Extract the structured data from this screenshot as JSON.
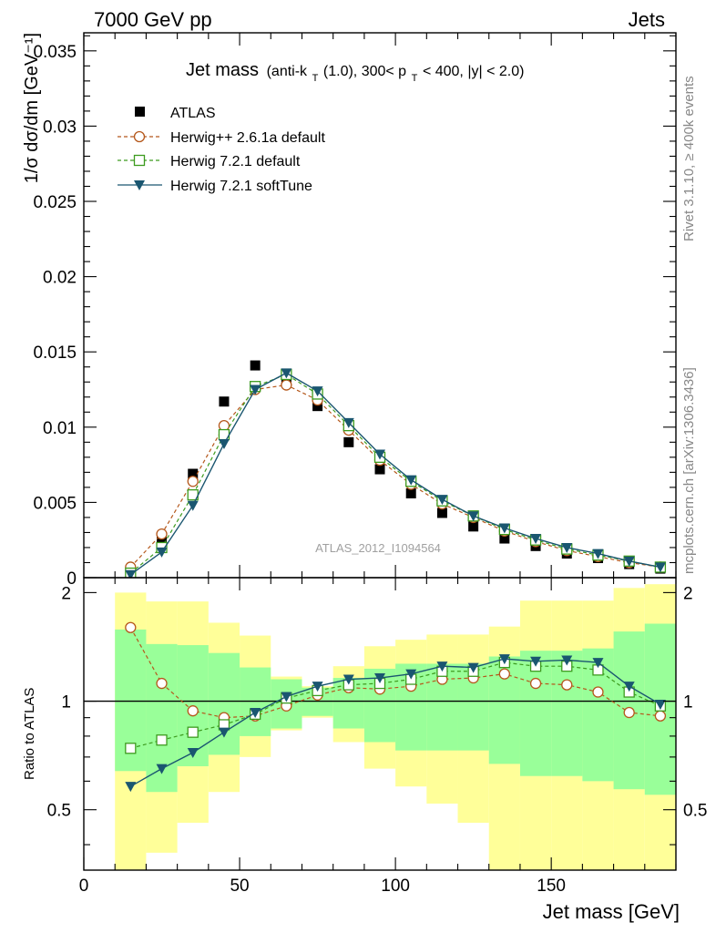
{
  "header": {
    "left": "7000 GeV pp",
    "right": "Jets"
  },
  "title": {
    "main": "Jet mass",
    "sub_pre": "(anti-k",
    "sub_T1": "T",
    "sub_mid": "(1.0), 300< p",
    "sub_T2": "T",
    "sub_post": " < 400, |y| < 2.0)"
  },
  "side_labels": {
    "rivet": "Rivet 3.1.10, ≥ 400k events",
    "mcplots": "mcplots.cern.ch [arXiv:1306.3436]"
  },
  "watermark": "ATLAS_2012_I1094564",
  "legend": {
    "atlas": "ATLAS",
    "h261": "Herwig++ 2.6.1a default",
    "h721": "Herwig 7.2.1 default",
    "h721soft": "Herwig 7.2.1 softTune"
  },
  "colors": {
    "atlas": "#000000",
    "h261": "#b5581c",
    "h721": "#3c9b1e",
    "h721soft": "#1a5670",
    "band_inner": "#99ff99",
    "band_outer": "#ffff99"
  },
  "chart_data": [
    {
      "type": "scatter",
      "title": "Jet mass (anti-kT(1.0), 300< pT < 400, |y| < 2.0)",
      "ylabel": "1/σ dσ/dm [GeV⁻¹]",
      "xlim": [
        0,
        190
      ],
      "ylim": [
        0,
        0.0362
      ],
      "yticks": [
        0,
        0.005,
        0.01,
        0.015,
        0.02,
        0.025,
        0.03,
        0.035
      ],
      "ytick_labels": [
        "0",
        "0.005",
        "0.01",
        "0.015",
        "0.02",
        "0.025",
        "0.03",
        "0.035"
      ],
      "x": [
        15,
        25,
        35,
        45,
        55,
        65,
        75,
        85,
        95,
        105,
        115,
        125,
        135,
        145,
        155,
        165,
        175,
        185
      ],
      "series": [
        {
          "name": "ATLAS",
          "style": "square",
          "values": [
            0.0004,
            0.0026,
            0.0069,
            0.0117,
            0.0141,
            0.0133,
            0.0114,
            0.009,
            0.0072,
            0.0056,
            0.0043,
            0.0034,
            0.0026,
            0.0021,
            0.0016,
            0.0013,
            0.0009,
            0.0006
          ]
        },
        {
          "name": "Herwig++ 2.6.1a default",
          "style": "circle-dashed",
          "values": [
            0.0007,
            0.0029,
            0.0064,
            0.0101,
            0.0125,
            0.0128,
            0.0118,
            0.0098,
            0.0078,
            0.0062,
            0.0049,
            0.004,
            0.0031,
            0.0024,
            0.0018,
            0.0014,
            0.001,
            0.0007
          ]
        },
        {
          "name": "Herwig 7.2.1 default",
          "style": "square-dashed",
          "values": [
            0.0003,
            0.002,
            0.0055,
            0.0095,
            0.0127,
            0.0135,
            0.0122,
            0.0101,
            0.008,
            0.0064,
            0.0051,
            0.0041,
            0.0032,
            0.0025,
            0.0019,
            0.0015,
            0.0011,
            0.0007
          ]
        },
        {
          "name": "Herwig 7.2.1 softTune",
          "style": "triangle-solid",
          "values": [
            0.0002,
            0.0017,
            0.0048,
            0.0089,
            0.0125,
            0.0136,
            0.0124,
            0.0103,
            0.0082,
            0.0065,
            0.0052,
            0.0041,
            0.0033,
            0.0026,
            0.002,
            0.0016,
            0.0011,
            0.0007
          ]
        }
      ]
    },
    {
      "type": "line",
      "ylabel": "Ratio to ATLAS",
      "xlabel": "Jet mass [GeV]",
      "xlim": [
        0,
        190
      ],
      "ylim": [
        0.34,
        2.2
      ],
      "xticks": [
        0,
        50,
        100,
        150
      ],
      "yticks": [
        0.5,
        1,
        2
      ],
      "ytick_labels": [
        "0.5",
        "1",
        "2"
      ],
      "x": [
        15,
        25,
        35,
        45,
        55,
        65,
        75,
        85,
        95,
        105,
        115,
        125,
        135,
        145,
        155,
        165,
        175,
        185
      ],
      "bins": [
        [
          10,
          20
        ],
        [
          20,
          30
        ],
        [
          30,
          40
        ],
        [
          40,
          50
        ],
        [
          50,
          60
        ],
        [
          60,
          70
        ],
        [
          70,
          80
        ],
        [
          80,
          90
        ],
        [
          90,
          100
        ],
        [
          100,
          110
        ],
        [
          110,
          120
        ],
        [
          120,
          130
        ],
        [
          130,
          140
        ],
        [
          140,
          150
        ],
        [
          150,
          160
        ],
        [
          160,
          170
        ],
        [
          170,
          180
        ],
        [
          180,
          190
        ]
      ],
      "band_inner": {
        "lo": [
          0.64,
          0.56,
          0.66,
          0.71,
          0.8,
          0.84,
          0.91,
          0.84,
          0.77,
          0.73,
          0.73,
          0.73,
          0.67,
          0.62,
          0.62,
          0.6,
          0.57,
          0.55
        ],
        "hi": [
          1.58,
          1.44,
          1.43,
          1.36,
          1.24,
          1.15,
          1.09,
          1.16,
          1.23,
          1.27,
          1.27,
          1.27,
          1.33,
          1.38,
          1.38,
          1.4,
          1.56,
          1.64
        ]
      },
      "band_outer": {
        "lo": [
          0.34,
          0.38,
          0.46,
          0.56,
          0.7,
          0.83,
          0.9,
          0.77,
          0.65,
          0.58,
          0.52,
          0.46,
          0.34,
          0.34,
          0.34,
          0.34,
          0.34,
          0.34
        ]
      },
      "band_outer_hi": [
        2.0,
        1.89,
        1.89,
        1.65,
        1.52,
        1.17,
        1.1,
        1.25,
        1.42,
        1.48,
        1.53,
        1.53,
        1.61,
        1.9,
        1.9,
        1.9,
        2.06,
        2.11
      ],
      "series": [
        {
          "name": "Herwig++ 2.6.1a default",
          "values": [
            1.6,
            1.12,
            0.94,
            0.9,
            0.91,
            0.97,
            1.04,
            1.09,
            1.08,
            1.1,
            1.15,
            1.16,
            1.19,
            1.12,
            1.11,
            1.06,
            0.93,
            0.91
          ]
        },
        {
          "name": "Herwig 7.2.1 default",
          "values": [
            0.74,
            0.78,
            0.82,
            0.86,
            0.92,
            1.02,
            1.07,
            1.11,
            1.12,
            1.15,
            1.21,
            1.21,
            1.28,
            1.25,
            1.25,
            1.22,
            1.06,
            0.97
          ]
        },
        {
          "name": "Herwig 7.2.1 softTune",
          "values": [
            0.58,
            0.65,
            0.72,
            0.82,
            0.93,
            1.03,
            1.1,
            1.15,
            1.16,
            1.19,
            1.25,
            1.24,
            1.31,
            1.29,
            1.3,
            1.28,
            1.1,
            0.98
          ]
        }
      ]
    }
  ]
}
